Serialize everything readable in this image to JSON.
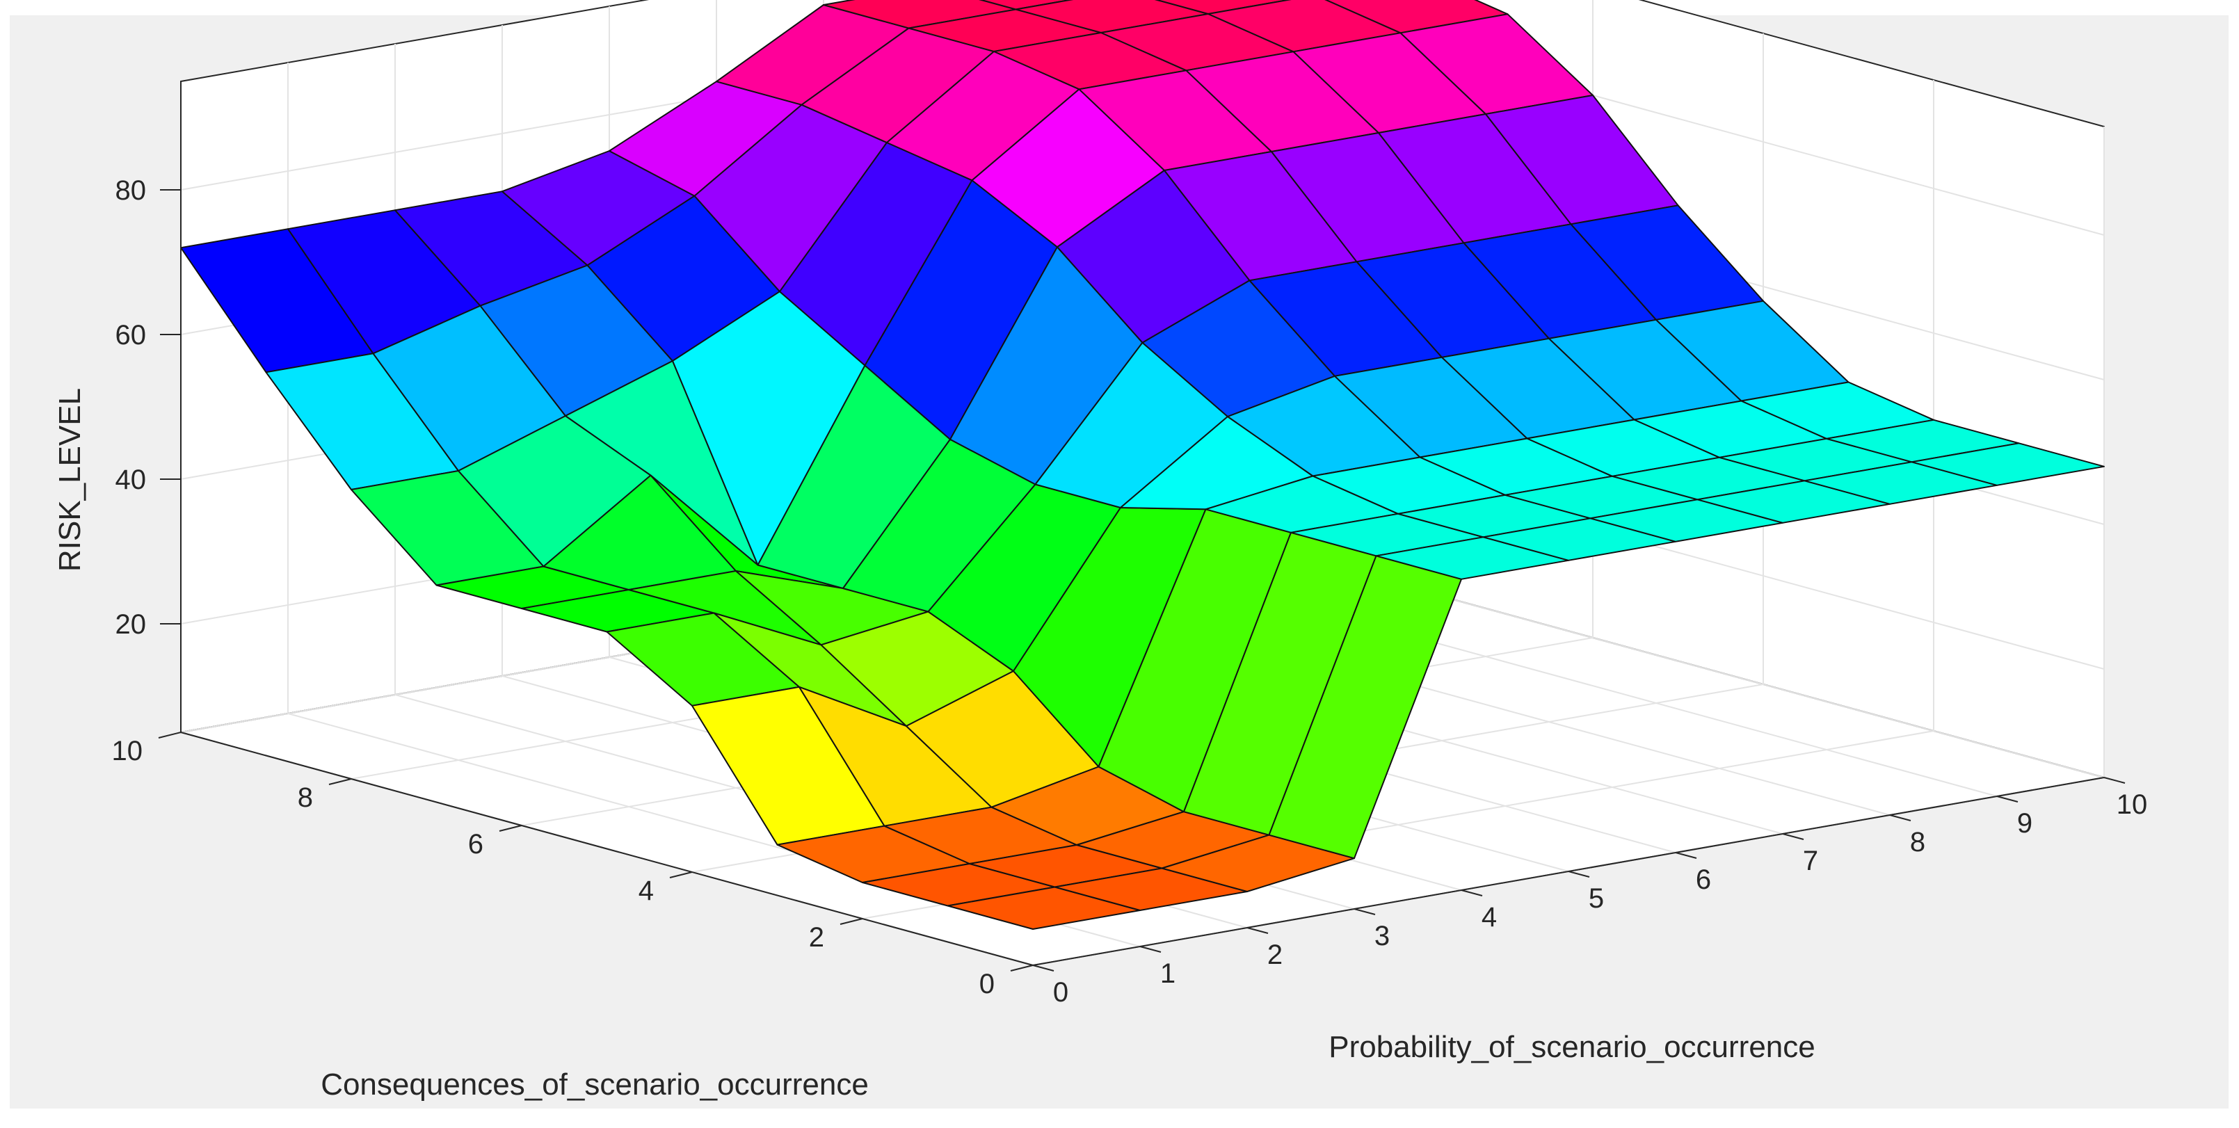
{
  "chart_data": {
    "type": "surface",
    "title": "",
    "xlabel": "Probability_of_scenario_occurrence",
    "ylabel": "Consequences_of_scenario_occurrence",
    "zlabel": "RISK_LEVEL",
    "x": [
      0,
      1,
      2,
      3,
      4,
      5,
      6,
      7,
      8,
      9,
      10
    ],
    "y": [
      0,
      1,
      2,
      3,
      4,
      5,
      6,
      7,
      8,
      9,
      10
    ],
    "xlim": [
      0,
      10
    ],
    "ylim": [
      0,
      10
    ],
    "zlim": [
      5,
      95
    ],
    "xticks": [
      "0",
      "1",
      "2",
      "3",
      "4",
      "5",
      "6",
      "7",
      "8",
      "9",
      "10"
    ],
    "yticks": [
      "0",
      "2",
      "4",
      "6",
      "8",
      "10"
    ],
    "zticks": [
      "20",
      "40",
      "60",
      "80"
    ],
    "grid": true,
    "colormap": "hsv",
    "z": [
      [
        10,
        10,
        10,
        12,
        48,
        48,
        48,
        48,
        48,
        48,
        48
      ],
      [
        10,
        10,
        10,
        12,
        48,
        48,
        48,
        48,
        48,
        48,
        48
      ],
      [
        10,
        10,
        10,
        12,
        48,
        48,
        48,
        48,
        48,
        48,
        48
      ],
      [
        12,
        12,
        12,
        15,
        48,
        50,
        50,
        50,
        50,
        50,
        50
      ],
      [
        28,
        28,
        20,
        25,
        45,
        55,
        58,
        58,
        58,
        58,
        58
      ],
      [
        35,
        35,
        28,
        30,
        45,
        62,
        68,
        68,
        68,
        68,
        68
      ],
      [
        35,
        35,
        35,
        30,
        48,
        72,
        80,
        80,
        80,
        80,
        80
      ],
      [
        35,
        35,
        45,
        30,
        55,
        78,
        88,
        88,
        88,
        88,
        88
      ],
      [
        45,
        45,
        50,
        55,
        62,
        80,
        90,
        90,
        90,
        90,
        90
      ],
      [
        58,
        58,
        62,
        65,
        72,
        82,
        90,
        90,
        90,
        90,
        90
      ],
      [
        72,
        72,
        72,
        72,
        75,
        82,
        90,
        90,
        90,
        90,
        90
      ]
    ]
  }
}
